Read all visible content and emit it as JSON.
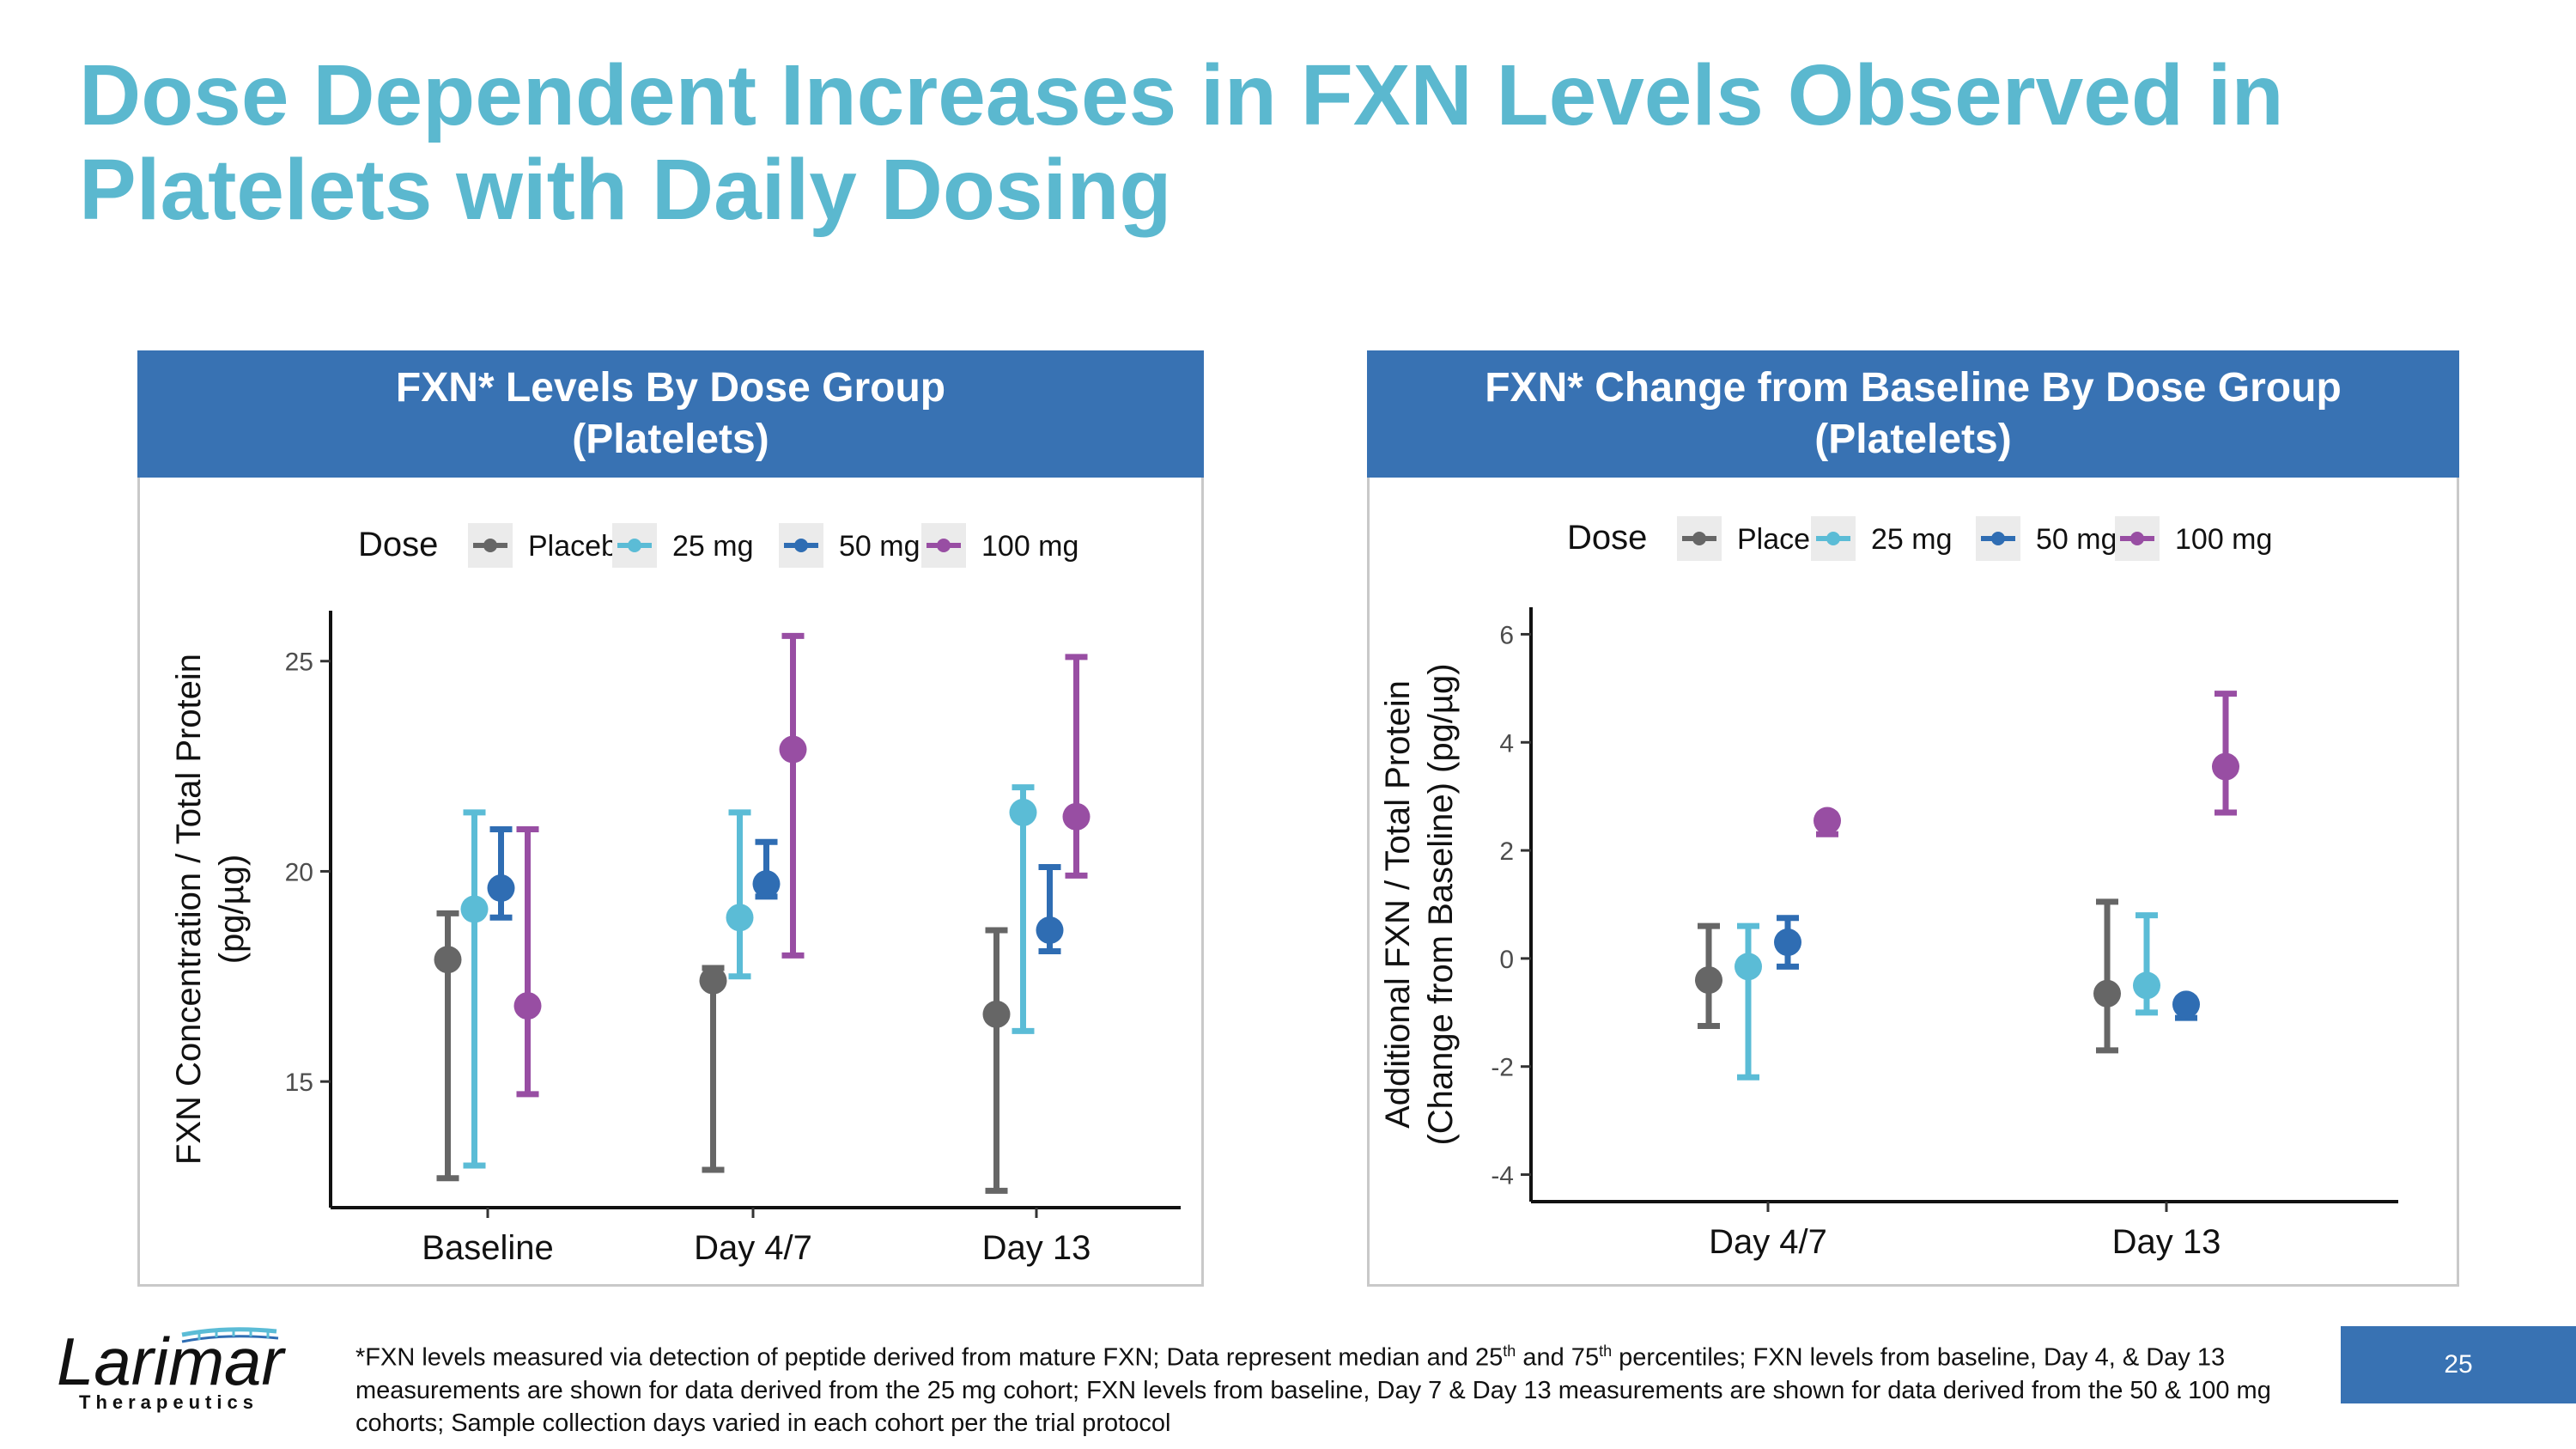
{
  "title_line1": "Dose Dependent Increases in FXN Levels Observed in",
  "title_line2": "Platelets with Daily Dosing",
  "colors": {
    "placebo": "#666666",
    "25mg": "#5bbcd6",
    "50mg": "#2f6db3",
    "100mg": "#984ea3",
    "header": "#3872b3",
    "title": "#5bb8cf"
  },
  "chart_data": [
    {
      "type": "scatter",
      "header_line1": "FXN* Levels By Dose Group",
      "header_line2": "(Platelets)",
      "legend_title": "Dose",
      "ylabel_line1": "FXN Concentration / Total Protein",
      "ylabel_line2": "(pg/µg)",
      "categories": [
        "Baseline",
        "Day 4/7",
        "Day 13"
      ],
      "ylim": [
        12,
        26.2
      ],
      "yticks": [
        15,
        20,
        25
      ],
      "ytick_labels": [
        "15",
        "20",
        "25"
      ],
      "series": [
        {
          "name": "Placebo",
          "color": "#666666",
          "median": [
            17.9,
            17.4,
            16.6
          ],
          "p25": [
            12.7,
            12.9,
            12.4
          ],
          "p75": [
            19.0,
            17.7,
            18.6
          ]
        },
        {
          "name": "25 mg",
          "color": "#5bbcd6",
          "median": [
            19.1,
            18.9,
            21.4
          ],
          "p25": [
            13.0,
            17.5,
            16.2
          ],
          "p75": [
            21.4,
            21.4,
            22.0
          ]
        },
        {
          "name": "50 mg",
          "color": "#2f6db3",
          "median": [
            19.6,
            19.7,
            18.6
          ],
          "p25": [
            18.9,
            19.4,
            18.1
          ],
          "p75": [
            21.0,
            20.7,
            20.1
          ]
        },
        {
          "name": "100 mg",
          "color": "#984ea3",
          "median": [
            16.8,
            22.9,
            21.3
          ],
          "p25": [
            14.7,
            18.0,
            19.9
          ],
          "p75": [
            21.0,
            25.6,
            25.1
          ]
        }
      ]
    },
    {
      "type": "scatter",
      "header_line1": "FXN* Change from Baseline By Dose Group",
      "header_line2": "(Platelets)",
      "legend_title": "Dose",
      "ylabel_line1": "Additional FXN / Total Protein",
      "ylabel_line2": "(Change from Baseline) (pg/µg)",
      "categories": [
        "Day 4/7",
        "Day 13"
      ],
      "ylim": [
        -4.5,
        6.5
      ],
      "yticks": [
        -4,
        -2,
        0,
        2,
        4,
        6
      ],
      "ytick_labels": [
        "-4",
        "-2",
        "0",
        "2",
        "4",
        "6"
      ],
      "series": [
        {
          "name": "Placebo",
          "color": "#666666",
          "median": [
            -0.4,
            -0.65
          ],
          "p25": [
            -1.25,
            -1.7
          ],
          "p75": [
            0.6,
            1.05
          ]
        },
        {
          "name": "25 mg",
          "color": "#5bbcd6",
          "median": [
            -0.15,
            -0.5
          ],
          "p25": [
            -2.2,
            -1.0
          ],
          "p75": [
            0.6,
            0.8
          ]
        },
        {
          "name": "50 mg",
          "color": "#2f6db3",
          "median": [
            0.3,
            -0.85
          ],
          "p25": [
            -0.15,
            -1.1
          ],
          "p75": [
            0.75,
            -0.75
          ]
        },
        {
          "name": "100 mg",
          "color": "#984ea3",
          "median": [
            2.55,
            3.55
          ],
          "p25": [
            2.3,
            2.7
          ],
          "p75": [
            2.65,
            4.9
          ]
        }
      ]
    }
  ],
  "footnote": {
    "part1": "*FXN levels measured via detection of peptide derived from mature FXN; Data represent median and 25",
    "sup1": "th",
    "part2": " and 75",
    "sup2": "th",
    "part3": " percentiles; FXN levels from baseline, Day 4, & Day 13 measurements are shown for data derived from the 25 mg cohort; FXN levels from baseline, Day 7 & Day 13 measurements are shown for data derived from the 50 & 100 mg cohorts; Sample collection days varied in each cohort per the trial protocol"
  },
  "logo": {
    "name": "Larimar",
    "sub": "Therapeutics"
  },
  "page_number": "25"
}
